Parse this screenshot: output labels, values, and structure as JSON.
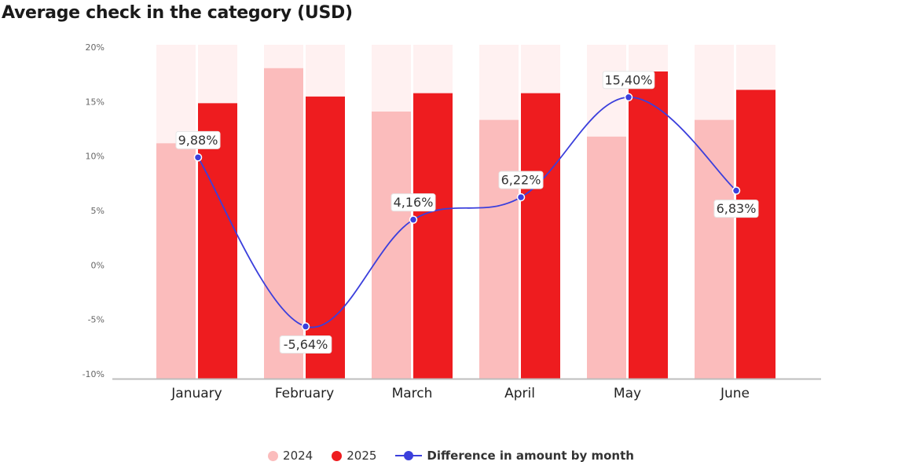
{
  "chart_data": {
    "type": "bar",
    "title": "Average check in the category (USD)",
    "categories": [
      "January",
      "February",
      "March",
      "April",
      "May",
      "June"
    ],
    "series": [
      {
        "name": "2024",
        "kind": "bar",
        "color": "#fbbcbc",
        "values": [
          14.1,
          18.6,
          16.0,
          15.5,
          14.5,
          15.5
        ]
      },
      {
        "name": "2025",
        "kind": "bar",
        "color": "#ee1c1f",
        "values": [
          16.5,
          16.9,
          17.1,
          17.1,
          18.4,
          17.3
        ]
      },
      {
        "name": "Difference in amount by month",
        "kind": "line",
        "color": "#3b3fdc",
        "values": [
          9.88,
          -5.64,
          4.16,
          6.22,
          15.4,
          6.83
        ],
        "labels": [
          "9,88%",
          "-5,64%",
          "4,16%",
          "6,22%",
          "15,40%",
          "6,83%"
        ]
      }
    ],
    "y_ticks": [
      "20%",
      "15%",
      "10%",
      "5%",
      "0%",
      "-5%",
      "-10%"
    ],
    "ylim": [
      -10,
      20
    ],
    "background_bar_color": "#fff1f1",
    "legend_position": "bottom-center",
    "grid": false
  }
}
